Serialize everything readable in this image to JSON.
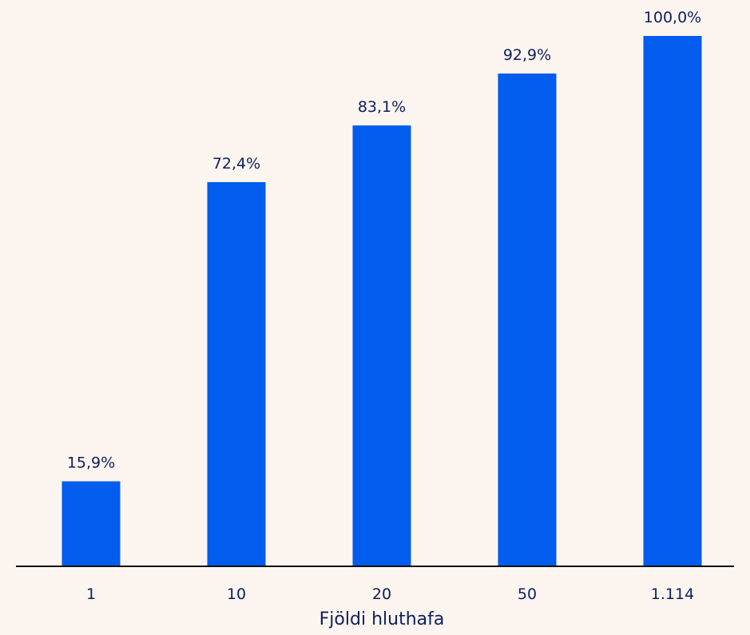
{
  "chart_data": {
    "type": "bar",
    "categories": [
      "1",
      "10",
      "20",
      "50",
      "1.114"
    ],
    "values": [
      15.9,
      72.4,
      83.1,
      92.9,
      100.0
    ],
    "data_labels": [
      "15,9%",
      "72,4%",
      "83,1%",
      "92,9%",
      "100,0%"
    ],
    "title": "",
    "xlabel": "Fjöldi hluthafa",
    "ylabel": "",
    "ylim": [
      0,
      100
    ],
    "grid": false,
    "legend": "none",
    "colors": {
      "bar": "#025ced",
      "text": "#0c1f5c",
      "axis": "#111111",
      "background": "#fdf5f0"
    }
  }
}
